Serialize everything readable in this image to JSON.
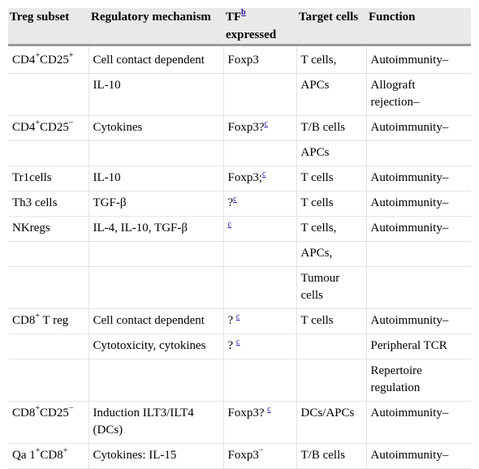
{
  "header": {
    "col1": "Treg subset",
    "col2": "Regulatory mechanism",
    "col3_main": "TF",
    "col3_sup": "b",
    "col3_sub": "expressed",
    "col4": "Target cells",
    "col5": "Function"
  },
  "rows": [
    {
      "subset": "CD4",
      "subset_sup1": "+",
      "subset_mid": "CD25",
      "subset_sup2": "+",
      "mechanism": "Cell contact dependent",
      "tf": "Foxp3",
      "tf_sup": "",
      "target": "T cells,",
      "function": "Autoimmunity–"
    },
    {
      "subset": "",
      "mechanism": "IL-10",
      "tf": "",
      "target": "APCs",
      "function": "Allograft rejection–"
    },
    {
      "subset": "CD4",
      "subset_sup1": "+",
      "subset_mid": "CD25",
      "subset_sup2": "−",
      "mechanism": "Cytokines",
      "tf": "Foxp3?",
      "tf_sup": "c",
      "target": "T/B cells",
      "function": "Autoimmunity–"
    },
    {
      "subset": "",
      "mechanism": "",
      "tf": "",
      "target": "APCs",
      "function": ""
    },
    {
      "subset": "Tr1cells",
      "mechanism": "IL-10",
      "tf": "Foxp3;",
      "tf_sup": "c",
      "target": "T cells",
      "function": "Autoimmunity–"
    },
    {
      "subset": "Th3 cells",
      "mechanism": "TGF-β",
      "tf": "?",
      "tf_sup": "c",
      "target": "T cells",
      "function": "Autoimmunity–"
    },
    {
      "subset": "NKregs",
      "mechanism": "IL-4, IL-10, TGF-β",
      "tf": "",
      "tf_sup": "c",
      "target": "T cells,",
      "function": "Autoimmunity–"
    },
    {
      "subset": "",
      "mechanism": "",
      "tf": "",
      "target": "APCs,",
      "function": ""
    },
    {
      "subset": "",
      "mechanism": "",
      "tf": "",
      "target": "Tumour cells",
      "function": ""
    },
    {
      "subset": "CD8",
      "subset_sup1": "+",
      "subset_mid": " T reg",
      "subset_sup2": "",
      "mechanism": "Cell contact dependent",
      "tf": "? ",
      "tf_sup": "c",
      "target": "T cells",
      "function": "Autoimmunity–"
    },
    {
      "subset": "",
      "mechanism": "Cytotoxicity, cytokines",
      "tf": "? ",
      "tf_sup": "c",
      "target": "",
      "function": "Peripheral TCR"
    },
    {
      "subset": "",
      "mechanism": "",
      "tf": "",
      "target": "",
      "function": "Repertoire regulation"
    },
    {
      "subset": "CD8",
      "subset_sup1": "+",
      "subset_mid": "CD25",
      "subset_sup2": "−",
      "mechanism": "Induction ILT3/ILT4 (DCs)",
      "tf": "Foxp3? ",
      "tf_sup": "c",
      "target": "DCs/APCs",
      "function": "Autoimmunity–"
    },
    {
      "subset": "Qa 1",
      "subset_sup1": "+",
      "subset_mid": "CD8",
      "subset_sup2": "+",
      "mechanism": "Cytokines: IL-15",
      "tf": "Foxp3",
      "tf_sup_plain": "−",
      "target": "T/B cells",
      "function": "Autoimmunity–"
    }
  ]
}
